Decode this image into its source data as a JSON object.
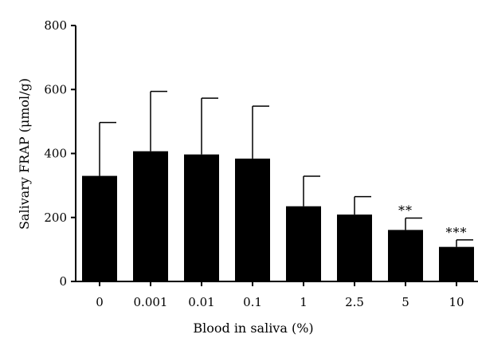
{
  "chart_data": {
    "type": "bar",
    "title": "",
    "xlabel": "Blood in saliva (%)",
    "ylabel": "Salivary FRAP (μmol/g)",
    "ylim": [
      0,
      800
    ],
    "yticks": [
      "0",
      "200",
      "400",
      "600",
      "800"
    ],
    "categories": [
      "0",
      "0.001",
      "0.01",
      "0.1",
      "1",
      "2.5",
      "5",
      "10"
    ],
    "values": [
      330,
      407,
      397,
      384,
      235,
      209,
      161,
      108
    ],
    "error_upper": [
      497,
      594,
      573,
      548,
      329,
      265,
      198,
      130
    ],
    "annotations": [
      "",
      "",
      "",
      "",
      "",
      "",
      "**",
      "***"
    ],
    "bar_color": "#000000",
    "grid": false,
    "legend": "none"
  }
}
